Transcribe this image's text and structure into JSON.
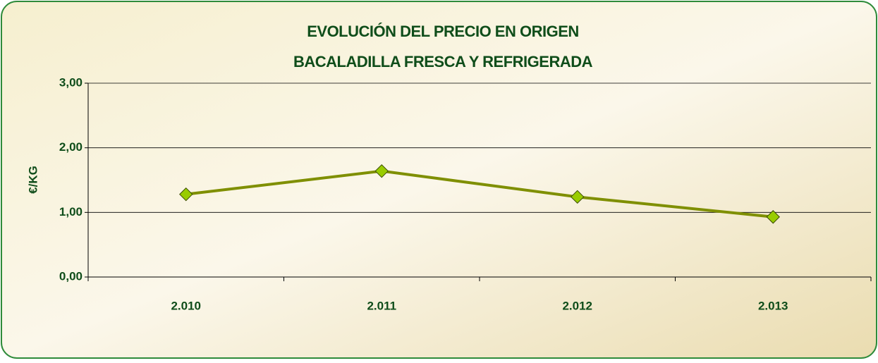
{
  "chart_data": {
    "type": "line",
    "title": "EVOLUCIÓN DEL PRECIO EN ORIGEN",
    "subtitle": "BACALADILLA  FRESCA Y REFRIGERADA",
    "y_label": "€/KG",
    "categories": [
      "2.010",
      "2.011",
      "2.012",
      "2.013"
    ],
    "series": [
      {
        "color": "#7f8f00",
        "marker_color": "#99cc00",
        "values": [
          1.28,
          1.64,
          1.24,
          0.93
        ]
      }
    ],
    "ylim": [
      0,
      3
    ],
    "yticks": [
      {
        "value": 0,
        "label": "0,00"
      },
      {
        "value": 1,
        "label": "1,00"
      },
      {
        "value": 2,
        "label": "2,00"
      },
      {
        "value": 3,
        "label": "3,00"
      }
    ],
    "grid": true
  }
}
